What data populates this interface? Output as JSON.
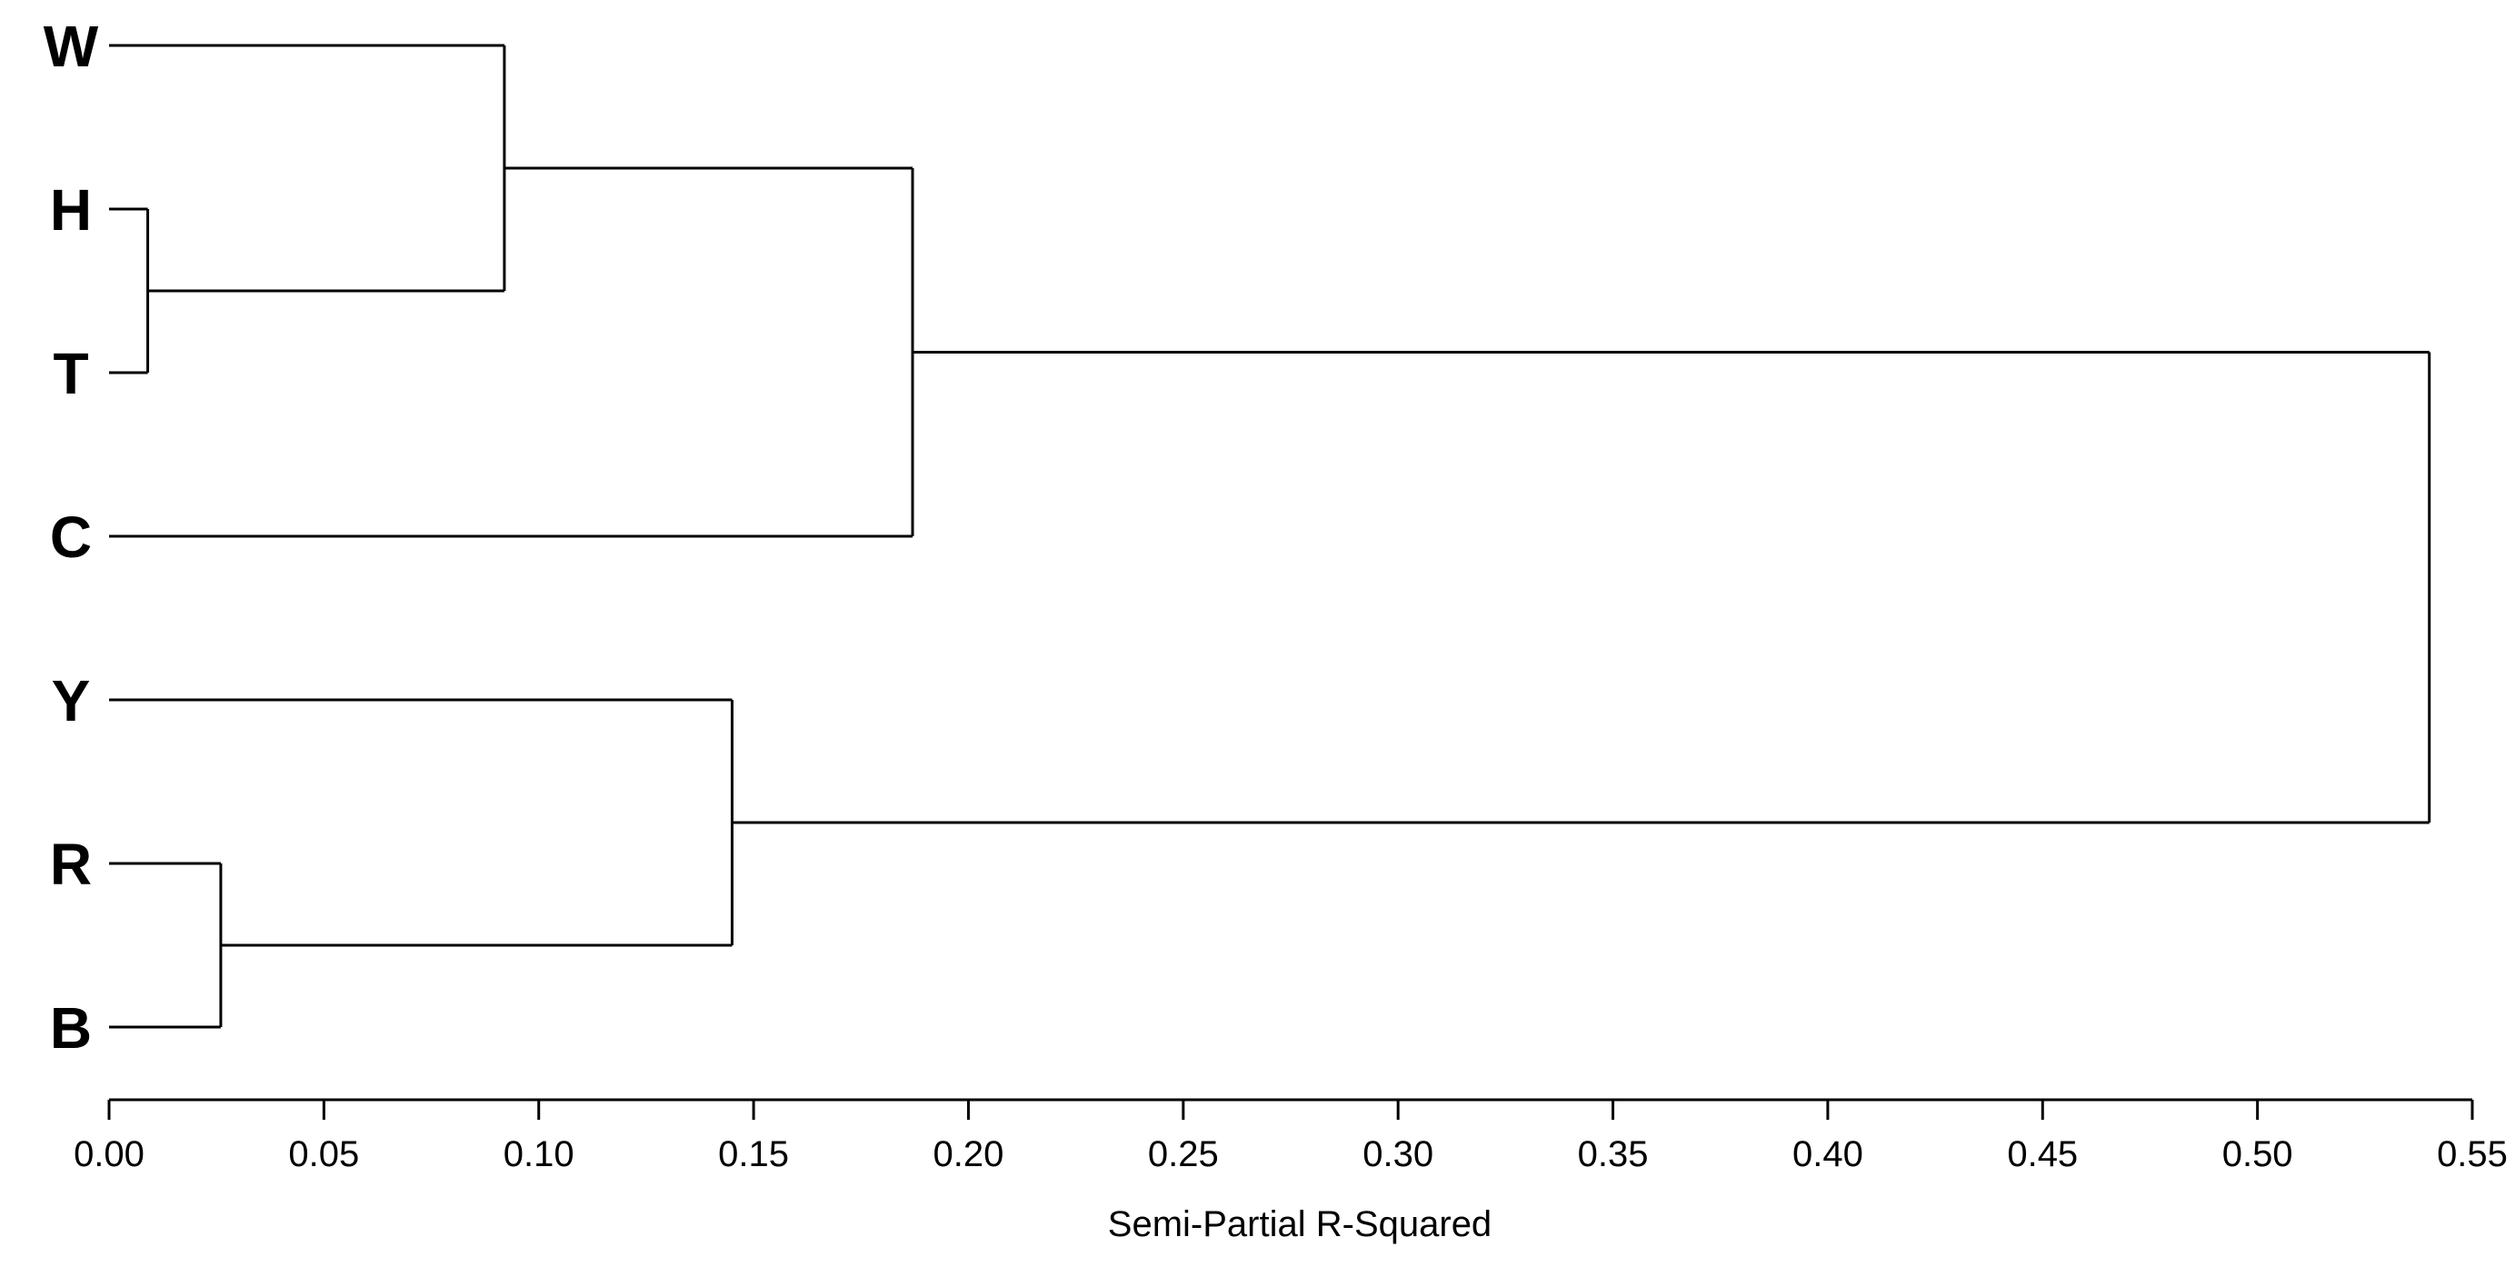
{
  "chart_data": {
    "type": "dendrogram",
    "orientation": "horizontal",
    "xlabel": "Semi-Partial R-Squared",
    "xlim": [
      0.0,
      0.55
    ],
    "x_ticks": [
      "0.00",
      "0.05",
      "0.10",
      "0.15",
      "0.20",
      "0.25",
      "0.30",
      "0.35",
      "0.40",
      "0.45",
      "0.50",
      "0.55"
    ],
    "leaves": [
      "W",
      "H",
      "T",
      "C",
      "Y",
      "R",
      "B"
    ],
    "merges": [
      {
        "id": "HT",
        "children": [
          "H",
          "T"
        ],
        "height": 0.009
      },
      {
        "id": "RB",
        "children": [
          "R",
          "B"
        ],
        "height": 0.026
      },
      {
        "id": "WHT",
        "children": [
          "W",
          "HT"
        ],
        "height": 0.092
      },
      {
        "id": "YRB",
        "children": [
          "Y",
          "RB"
        ],
        "height": 0.145
      },
      {
        "id": "WHTC",
        "children": [
          "WHT",
          "C"
        ],
        "height": 0.187
      },
      {
        "id": "ALL",
        "children": [
          "WHTC",
          "YRB"
        ],
        "height": 0.54
      }
    ],
    "grid": false
  }
}
